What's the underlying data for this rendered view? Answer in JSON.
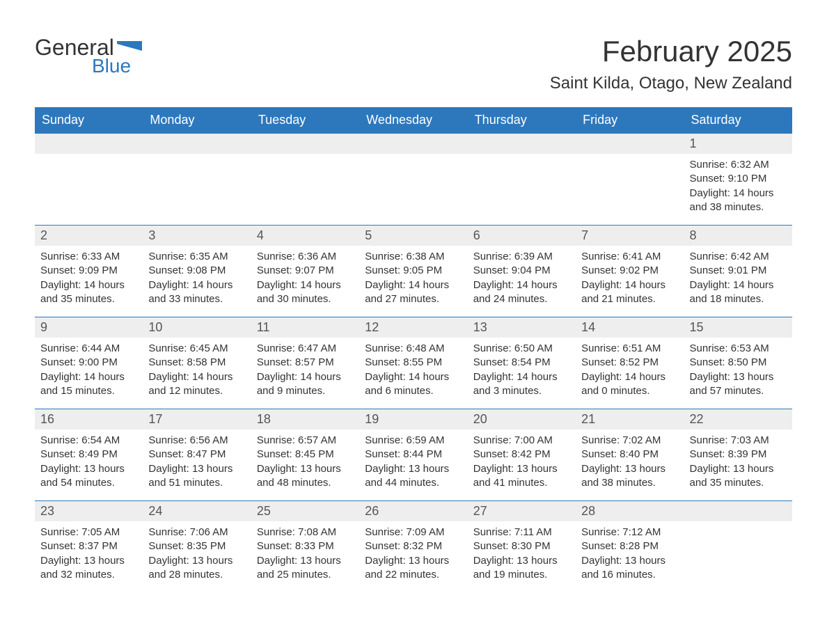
{
  "brand": {
    "word1": "General",
    "word2": "Blue"
  },
  "title": "February 2025",
  "location": "Saint Kilda, Otago, New Zealand",
  "colors": {
    "header_bg": "#2d78bd",
    "header_text": "#ffffff",
    "daynum_bg": "#eeeeee",
    "border": "#2d78bd",
    "body_text": "#333333",
    "page_bg": "#ffffff"
  },
  "typography": {
    "title_fontsize": 42,
    "location_fontsize": 24,
    "header_fontsize": 18,
    "daynum_fontsize": 18,
    "body_fontsize": 15
  },
  "day_headers": [
    "Sunday",
    "Monday",
    "Tuesday",
    "Wednesday",
    "Thursday",
    "Friday",
    "Saturday"
  ],
  "weeks": [
    [
      null,
      null,
      null,
      null,
      null,
      null,
      {
        "num": "1",
        "sunrise": "Sunrise: 6:32 AM",
        "sunset": "Sunset: 9:10 PM",
        "daylight": "Daylight: 14 hours and 38 minutes."
      }
    ],
    [
      {
        "num": "2",
        "sunrise": "Sunrise: 6:33 AM",
        "sunset": "Sunset: 9:09 PM",
        "daylight": "Daylight: 14 hours and 35 minutes."
      },
      {
        "num": "3",
        "sunrise": "Sunrise: 6:35 AM",
        "sunset": "Sunset: 9:08 PM",
        "daylight": "Daylight: 14 hours and 33 minutes."
      },
      {
        "num": "4",
        "sunrise": "Sunrise: 6:36 AM",
        "sunset": "Sunset: 9:07 PM",
        "daylight": "Daylight: 14 hours and 30 minutes."
      },
      {
        "num": "5",
        "sunrise": "Sunrise: 6:38 AM",
        "sunset": "Sunset: 9:05 PM",
        "daylight": "Daylight: 14 hours and 27 minutes."
      },
      {
        "num": "6",
        "sunrise": "Sunrise: 6:39 AM",
        "sunset": "Sunset: 9:04 PM",
        "daylight": "Daylight: 14 hours and 24 minutes."
      },
      {
        "num": "7",
        "sunrise": "Sunrise: 6:41 AM",
        "sunset": "Sunset: 9:02 PM",
        "daylight": "Daylight: 14 hours and 21 minutes."
      },
      {
        "num": "8",
        "sunrise": "Sunrise: 6:42 AM",
        "sunset": "Sunset: 9:01 PM",
        "daylight": "Daylight: 14 hours and 18 minutes."
      }
    ],
    [
      {
        "num": "9",
        "sunrise": "Sunrise: 6:44 AM",
        "sunset": "Sunset: 9:00 PM",
        "daylight": "Daylight: 14 hours and 15 minutes."
      },
      {
        "num": "10",
        "sunrise": "Sunrise: 6:45 AM",
        "sunset": "Sunset: 8:58 PM",
        "daylight": "Daylight: 14 hours and 12 minutes."
      },
      {
        "num": "11",
        "sunrise": "Sunrise: 6:47 AM",
        "sunset": "Sunset: 8:57 PM",
        "daylight": "Daylight: 14 hours and 9 minutes."
      },
      {
        "num": "12",
        "sunrise": "Sunrise: 6:48 AM",
        "sunset": "Sunset: 8:55 PM",
        "daylight": "Daylight: 14 hours and 6 minutes."
      },
      {
        "num": "13",
        "sunrise": "Sunrise: 6:50 AM",
        "sunset": "Sunset: 8:54 PM",
        "daylight": "Daylight: 14 hours and 3 minutes."
      },
      {
        "num": "14",
        "sunrise": "Sunrise: 6:51 AM",
        "sunset": "Sunset: 8:52 PM",
        "daylight": "Daylight: 14 hours and 0 minutes."
      },
      {
        "num": "15",
        "sunrise": "Sunrise: 6:53 AM",
        "sunset": "Sunset: 8:50 PM",
        "daylight": "Daylight: 13 hours and 57 minutes."
      }
    ],
    [
      {
        "num": "16",
        "sunrise": "Sunrise: 6:54 AM",
        "sunset": "Sunset: 8:49 PM",
        "daylight": "Daylight: 13 hours and 54 minutes."
      },
      {
        "num": "17",
        "sunrise": "Sunrise: 6:56 AM",
        "sunset": "Sunset: 8:47 PM",
        "daylight": "Daylight: 13 hours and 51 minutes."
      },
      {
        "num": "18",
        "sunrise": "Sunrise: 6:57 AM",
        "sunset": "Sunset: 8:45 PM",
        "daylight": "Daylight: 13 hours and 48 minutes."
      },
      {
        "num": "19",
        "sunrise": "Sunrise: 6:59 AM",
        "sunset": "Sunset: 8:44 PM",
        "daylight": "Daylight: 13 hours and 44 minutes."
      },
      {
        "num": "20",
        "sunrise": "Sunrise: 7:00 AM",
        "sunset": "Sunset: 8:42 PM",
        "daylight": "Daylight: 13 hours and 41 minutes."
      },
      {
        "num": "21",
        "sunrise": "Sunrise: 7:02 AM",
        "sunset": "Sunset: 8:40 PM",
        "daylight": "Daylight: 13 hours and 38 minutes."
      },
      {
        "num": "22",
        "sunrise": "Sunrise: 7:03 AM",
        "sunset": "Sunset: 8:39 PM",
        "daylight": "Daylight: 13 hours and 35 minutes."
      }
    ],
    [
      {
        "num": "23",
        "sunrise": "Sunrise: 7:05 AM",
        "sunset": "Sunset: 8:37 PM",
        "daylight": "Daylight: 13 hours and 32 minutes."
      },
      {
        "num": "24",
        "sunrise": "Sunrise: 7:06 AM",
        "sunset": "Sunset: 8:35 PM",
        "daylight": "Daylight: 13 hours and 28 minutes."
      },
      {
        "num": "25",
        "sunrise": "Sunrise: 7:08 AM",
        "sunset": "Sunset: 8:33 PM",
        "daylight": "Daylight: 13 hours and 25 minutes."
      },
      {
        "num": "26",
        "sunrise": "Sunrise: 7:09 AM",
        "sunset": "Sunset: 8:32 PM",
        "daylight": "Daylight: 13 hours and 22 minutes."
      },
      {
        "num": "27",
        "sunrise": "Sunrise: 7:11 AM",
        "sunset": "Sunset: 8:30 PM",
        "daylight": "Daylight: 13 hours and 19 minutes."
      },
      {
        "num": "28",
        "sunrise": "Sunrise: 7:12 AM",
        "sunset": "Sunset: 8:28 PM",
        "daylight": "Daylight: 13 hours and 16 minutes."
      },
      null
    ]
  ]
}
